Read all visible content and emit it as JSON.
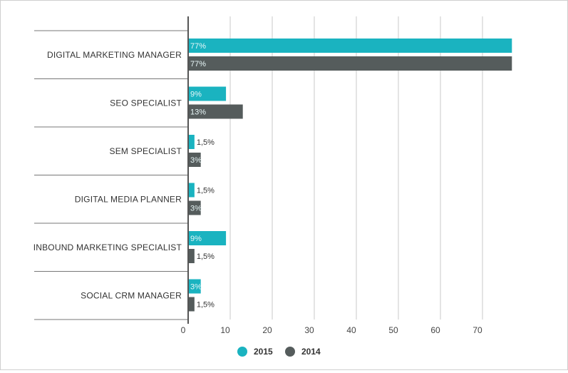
{
  "chart_data": {
    "type": "bar",
    "orientation": "horizontal",
    "categories": [
      "DIGITAL MARKETING MANAGER",
      "SEO SPECIALIST",
      "SEM SPECIALIST",
      "DIGITAL MEDIA PLANNER",
      "INBOUND MARKETING SPECIALIST",
      "SOCIAL CRM MANAGER"
    ],
    "series": [
      {
        "name": "2015",
        "color": "#1ab3c0",
        "values": [
          77,
          9,
          1.5,
          1.5,
          9,
          3
        ],
        "labels": [
          "77%",
          "9%",
          "1,5%",
          "1,5%",
          "9%",
          "3%"
        ]
      },
      {
        "name": "2014",
        "color": "#555c5c",
        "values": [
          77,
          13,
          3,
          3,
          1.5,
          1.5
        ],
        "labels": [
          "77%",
          "13%",
          "3%",
          "3%",
          "1,5%",
          "1,5%"
        ]
      }
    ],
    "xticks": [
      "0",
      "10",
      "20",
      "30",
      "40",
      "50",
      "60",
      "70"
    ],
    "xlim": [
      0,
      77
    ],
    "grid": true,
    "legend": "bottom-center"
  }
}
